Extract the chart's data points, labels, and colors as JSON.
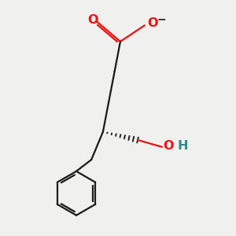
{
  "bg_color": "#f0f0ee",
  "bond_color": "#1a1a1a",
  "o_color": "#ee1111",
  "oh_color": "#2e8b8b",
  "line_width": 1.6,
  "fig_size": [
    3.0,
    3.0
  ],
  "dpi": 100,
  "xlim": [
    0,
    10
  ],
  "ylim": [
    0,
    10
  ]
}
